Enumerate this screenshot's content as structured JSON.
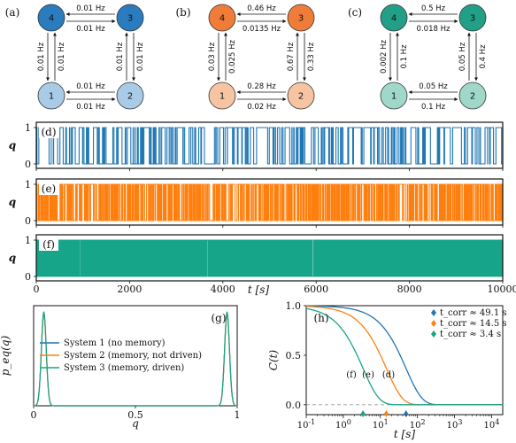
{
  "colors": {
    "sys1": "#1f77b4",
    "sys2": "#ff7f0e",
    "sys3": "#17a589",
    "node_light_1": "#a9cbe8",
    "node_dark_1": "#2b7bbf",
    "node_light_2": "#f6c4a3",
    "node_dark_2": "#f07c3a",
    "node_light_3": "#9fd8c8",
    "node_dark_3": "#22a087"
  },
  "networks": [
    {
      "panel": "(a)",
      "nodes": [
        "4",
        "3",
        "1",
        "2"
      ],
      "top_upper": "0.01 Hz",
      "top_lower": "0.01 Hz",
      "bot_upper": "0.01 Hz",
      "bot_lower": "0.01 Hz",
      "left_a": "0.01 Hz",
      "left_b": "0.01 Hz",
      "right_a": "0.01 Hz",
      "right_b": "0.01 Hz"
    },
    {
      "panel": "(b)",
      "nodes": [
        "4",
        "3",
        "1",
        "2"
      ],
      "top_upper": "0.46 Hz",
      "top_lower": "0.0135 Hz",
      "bot_upper": "0.28 Hz",
      "bot_lower": "0.02 Hz",
      "left_a": "0.03 Hz",
      "left_b": "0.025 Hz",
      "right_a": "0.67 Hz",
      "right_b": "0.33 Hz"
    },
    {
      "panel": "(c)",
      "nodes": [
        "4",
        "3",
        "1",
        "2"
      ],
      "top_upper": "0.5 Hz",
      "top_lower": "0.018 Hz",
      "bot_upper": "0.05 Hz",
      "bot_lower": "0.1 Hz",
      "left_a": "0.002 Hz",
      "left_b": "0.1 Hz",
      "right_a": "0.05 Hz",
      "right_b": "0.4 Hz"
    }
  ],
  "traces": {
    "panels": [
      "(d)",
      "(e)",
      "(f)"
    ],
    "ylabel": "q",
    "yticks": [
      "0",
      "1"
    ],
    "xticks": [
      "0",
      "2000",
      "4000",
      "6000",
      "8000",
      "10000"
    ],
    "xlabel": "t [s]"
  },
  "chart_data": [
    {
      "type": "line",
      "panel": "(g)",
      "ylabel": "p_eq(q)",
      "xlabel": "q",
      "xlim": [
        0,
        1
      ],
      "xticks": [
        "0",
        "0.5",
        "1"
      ],
      "series": [
        {
          "name": "System 1 (no memory)",
          "peak_positions": [
            0.05,
            0.95
          ],
          "peak_height": 18.5
        },
        {
          "name": "System 2 (memory, not driven)",
          "peak_positions": [
            0.05,
            0.95
          ],
          "peak_height": 18.3
        },
        {
          "name": "System 3 (memory, driven)",
          "peak_positions": [
            0.05,
            0.95
          ],
          "peak_height": 18.8
        }
      ]
    },
    {
      "type": "line",
      "panel": "(h)",
      "ylabel": "C(t)",
      "xlabel": "t [s]",
      "xscale": "log",
      "xlim": [
        0.1,
        20000
      ],
      "ylim": [
        -0.1,
        1.0
      ],
      "yticks": [
        "0.0",
        "0.5",
        "1.0"
      ],
      "xticks": [
        "10^-1",
        "10^0",
        "10^1",
        "10^2",
        "10^3",
        "10^4"
      ],
      "series": [
        {
          "name": "(d)",
          "t_corr": 49.1,
          "legend": "t_corr ≈ 49.1 s"
        },
        {
          "name": "(e)",
          "t_corr": 14.5,
          "legend": "t_corr ≈ 14.5 s"
        },
        {
          "name": "(f)",
          "t_corr": 3.4,
          "legend": "t_corr ≈ 3.4 s"
        }
      ]
    }
  ]
}
